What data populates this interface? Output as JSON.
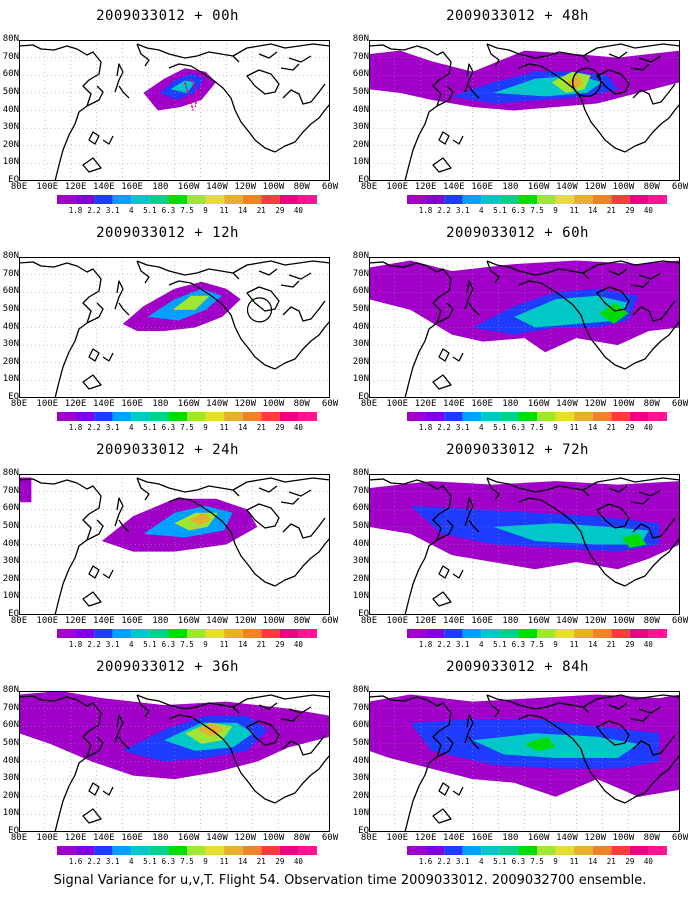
{
  "panels": [
    {
      "title": "2009033012 + 00h"
    },
    {
      "title": "2009033012 + 48h"
    },
    {
      "title": "2009033012 + 12h"
    },
    {
      "title": "2009033012 + 60h"
    },
    {
      "title": "2009033012 + 24h"
    },
    {
      "title": "2009033012 + 72h"
    },
    {
      "title": "2009033012 + 36h"
    },
    {
      "title": "2009033012 + 84h"
    }
  ],
  "axes": {
    "lat_labels": [
      "80N",
      "70N",
      "60N",
      "50N",
      "40N",
      "30N",
      "20N",
      "10N",
      "EQ"
    ],
    "lon_labels": [
      "80E",
      "100E",
      "120E",
      "140E",
      "160E",
      "180",
      "160W",
      "140W",
      "120W",
      "100W",
      "80W",
      "60W"
    ]
  },
  "colorbar": {
    "labels": [
      "1.8",
      "2.2",
      "3.1",
      "4",
      "5.1",
      "6.3",
      "7.5",
      "9",
      "11",
      "14",
      "21",
      "29",
      "40"
    ],
    "colors": [
      "#a000c8",
      "#8200dc",
      "#1e3cff",
      "#00a0ff",
      "#00c8c8",
      "#00d28c",
      "#00dc00",
      "#a0e632",
      "#e6dc32",
      "#e6af2d",
      "#f08228",
      "#fa3c3c",
      "#f00082"
    ],
    "first_label_36h": "1.6",
    "first_label_84h": "1.6"
  },
  "footer": "Signal Variance for u,v,T. Flight 54. Observation time 2009033012. 2009032700 ensemble."
}
